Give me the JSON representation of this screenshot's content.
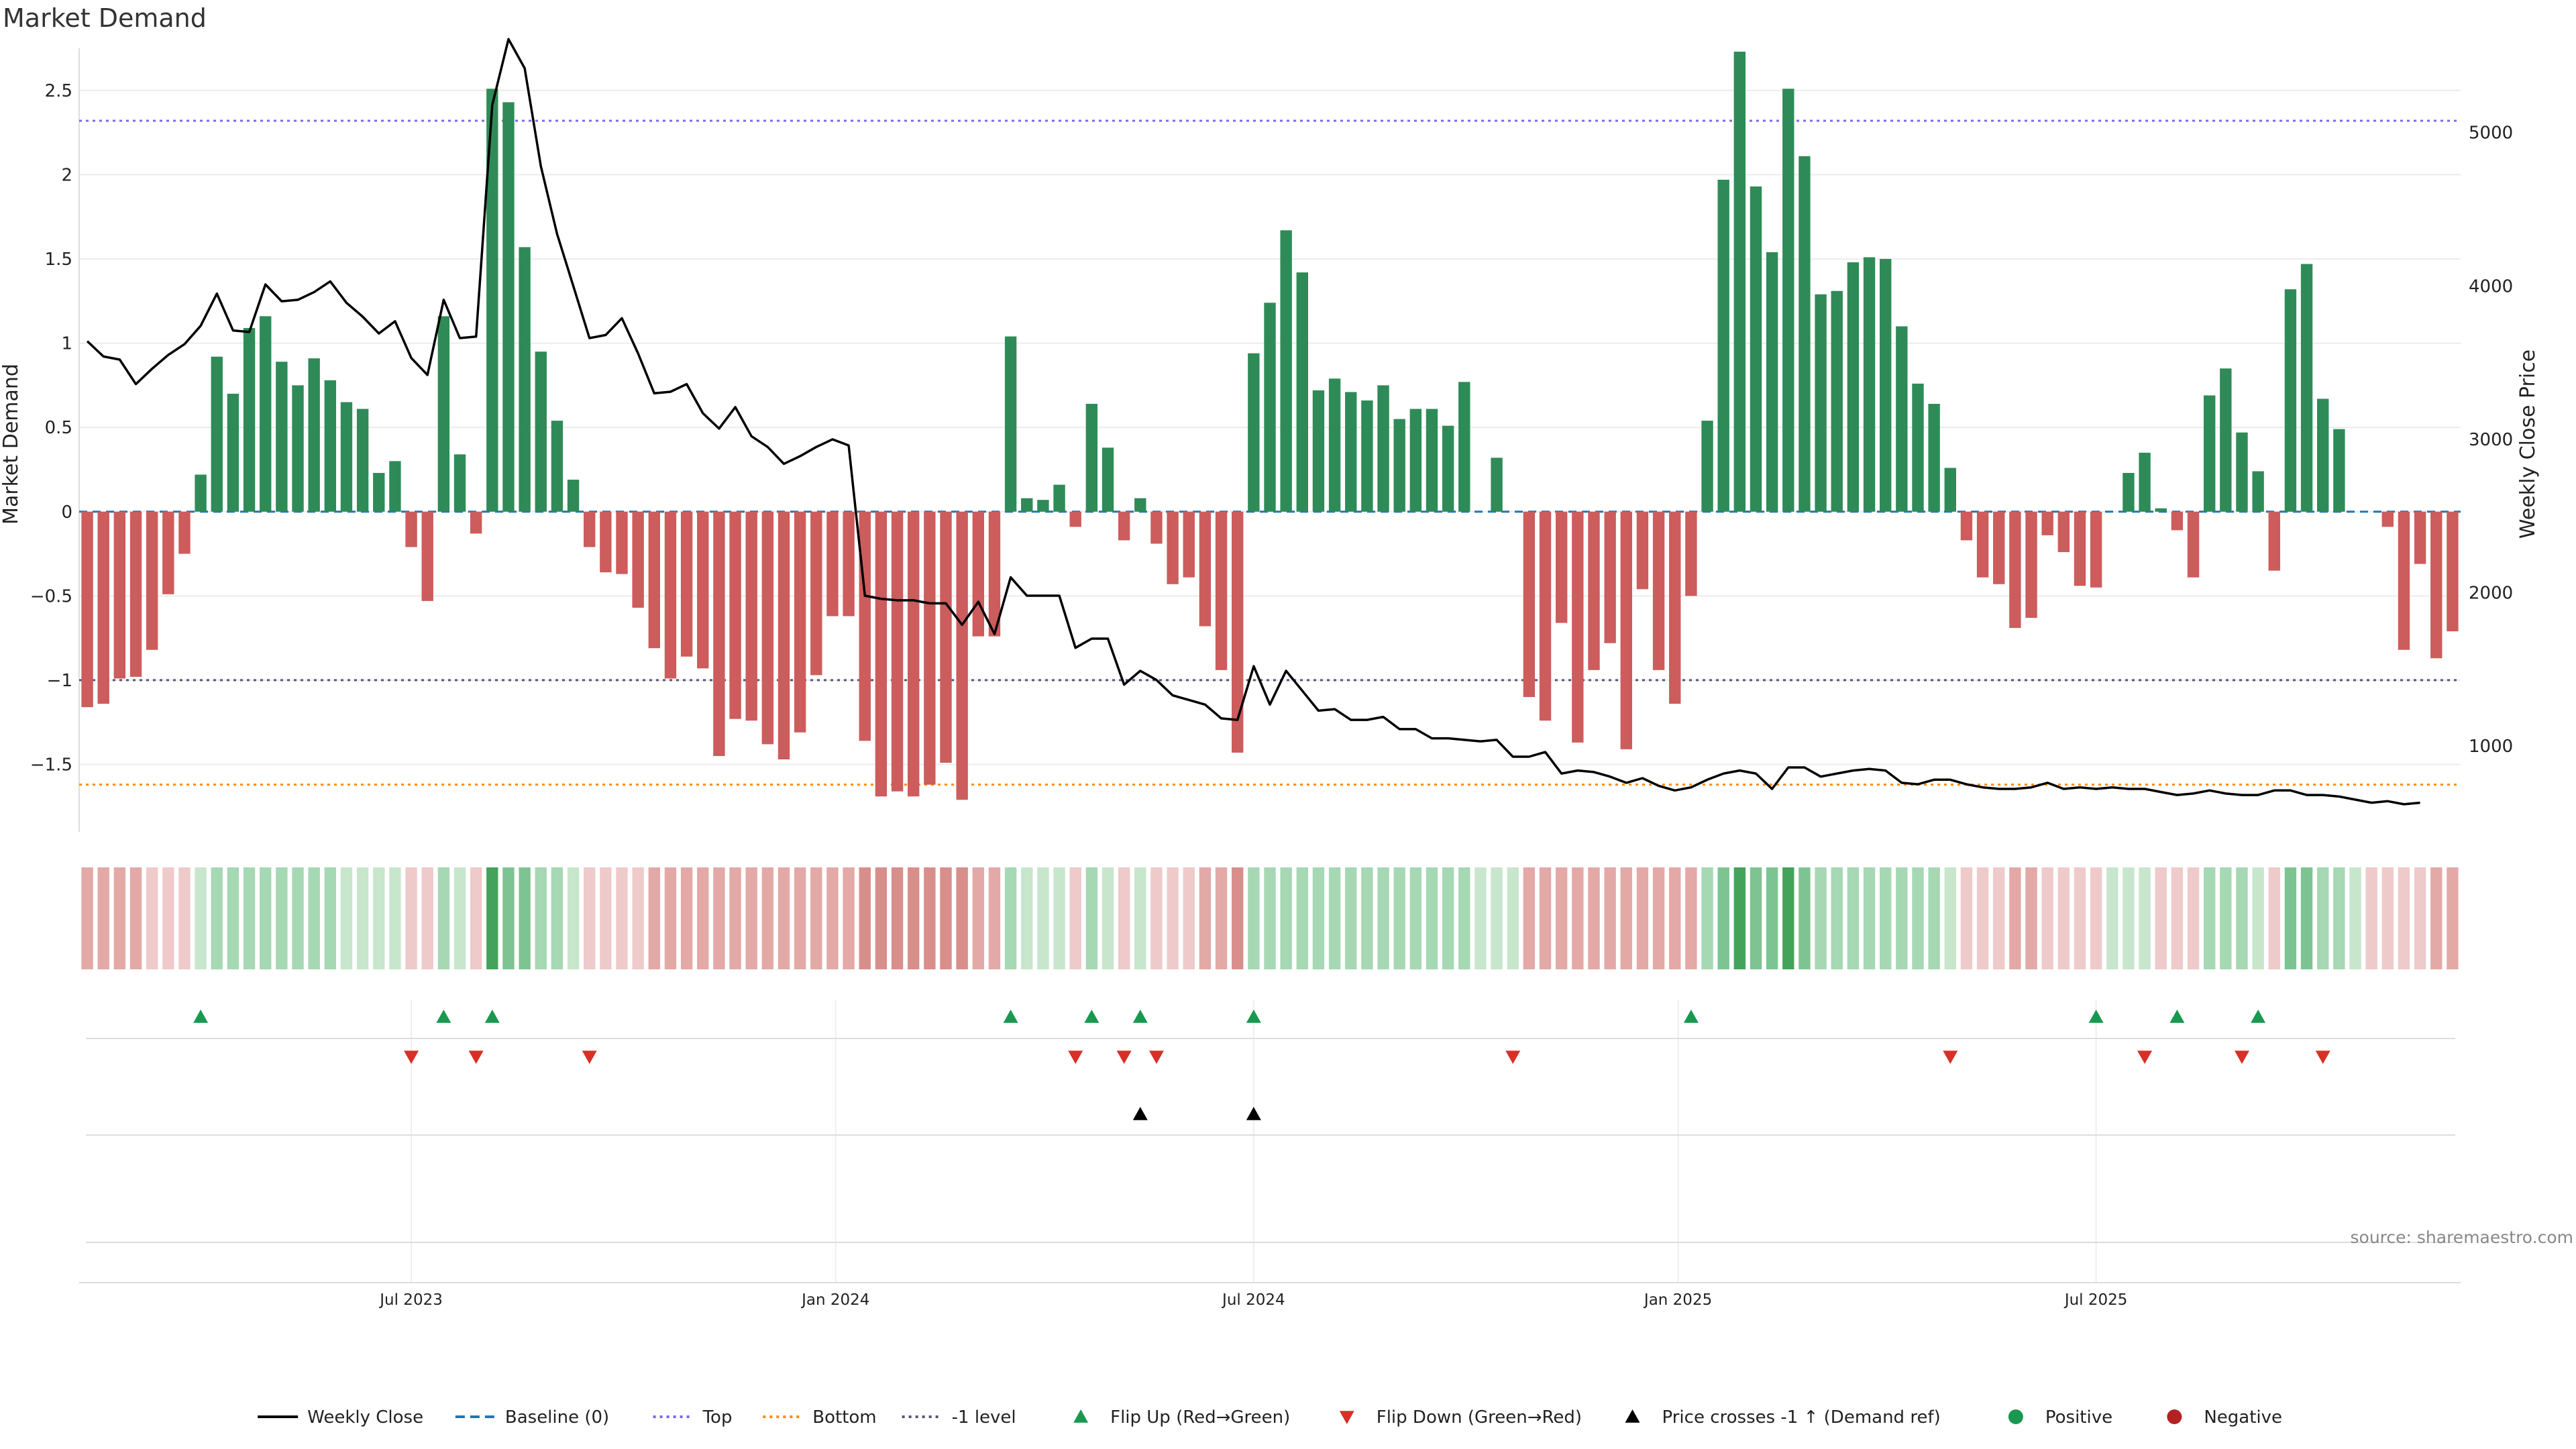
{
  "chart_data": {
    "type": "bar",
    "title": "Market Demand",
    "ylabel": "Market Demand",
    "y2label": "Weekly Close Price",
    "source": "source: sharemaestro.com",
    "ylim": [
      -1.9,
      2.75
    ],
    "y2lim": [
      440,
      5550
    ],
    "yticks": [
      -1.5,
      -1,
      -0.5,
      0,
      0.5,
      1,
      1.5,
      2,
      2.5
    ],
    "yticklabels": [
      "−1.5",
      "−1",
      "−0.5",
      "0",
      "0.5",
      "1",
      "1.5",
      "2",
      "2.5"
    ],
    "y2ticks": [
      1000,
      2000,
      3000,
      4000,
      5000
    ],
    "y2ticklabels": [
      "1000",
      "2000",
      "3000",
      "4000",
      "5000"
    ],
    "xticks": [
      {
        "index": 20,
        "label": "Jul 2023"
      },
      {
        "index": 46.2,
        "label": "Jan 2024"
      },
      {
        "index": 72,
        "label": "Jul 2024"
      },
      {
        "index": 98.2,
        "label": "Jan 2025"
      },
      {
        "index": 124,
        "label": "Jul 2025"
      }
    ],
    "reference_lines": {
      "baseline": 0,
      "top": 2.32,
      "bottom": -1.62,
      "minus_one": -1
    },
    "colors": {
      "positive": "#2e8b57",
      "negative": "#cd5c5c",
      "weekly_close": "#000000",
      "baseline": "#1f77b4",
      "top": "#7b68ee",
      "bottom": "#ff8c00",
      "minus_one": "#555577",
      "flip_up": "#1a9850",
      "flip_down": "#d73027",
      "price_cross": "#000000",
      "positive_dot": "#1a9850",
      "negative_dot": "#b22222"
    },
    "demand": [
      -1.16,
      -1.14,
      -0.99,
      -0.98,
      -0.82,
      -0.49,
      -0.25,
      0.22,
      0.92,
      0.7,
      1.09,
      1.16,
      0.89,
      0.75,
      0.91,
      0.78,
      0.65,
      0.61,
      0.23,
      0.3,
      -0.21,
      -0.53,
      1.16,
      0.34,
      -0.13,
      2.51,
      2.43,
      1.57,
      0.95,
      0.54,
      0.19,
      -0.21,
      -0.36,
      -0.37,
      -0.57,
      -0.81,
      -0.99,
      -0.86,
      -0.93,
      -1.45,
      -1.23,
      -1.24,
      -1.38,
      -1.47,
      -1.31,
      -0.97,
      -0.62,
      -0.62,
      -1.36,
      -1.69,
      -1.66,
      -1.69,
      -1.62,
      -1.49,
      -1.71,
      -0.74,
      -0.74,
      1.04,
      0.08,
      0.07,
      0.16,
      -0.09,
      0.64,
      0.38,
      -0.17,
      0.08,
      -0.19,
      -0.43,
      -0.39,
      -0.68,
      -0.94,
      -1.43,
      0.94,
      1.24,
      1.67,
      1.42,
      0.72,
      0.79,
      0.71,
      0.66,
      0.75,
      0.55,
      0.61,
      0.61,
      0.51,
      0.77,
      0.0,
      0.32,
      0.0,
      -1.1,
      -1.24,
      -0.66,
      -1.37,
      -0.94,
      -0.78,
      -1.41,
      -0.46,
      -0.94,
      -1.14,
      -0.5,
      0.54,
      1.97,
      2.73,
      1.93,
      1.54,
      2.51,
      2.11,
      1.29,
      1.31,
      1.48,
      1.51,
      1.5,
      1.1,
      0.76,
      0.64,
      0.26,
      -0.17,
      -0.39,
      -0.43,
      -0.69,
      -0.63,
      -0.14,
      -0.24,
      -0.44,
      -0.45,
      0.0,
      0.23,
      0.35,
      0.02,
      -0.11,
      -0.39,
      0.69,
      0.85,
      0.47,
      0.24,
      -0.35,
      1.32,
      1.47,
      0.67,
      0.49,
      0.0,
      0.0,
      -0.09,
      -0.82,
      -0.31,
      -0.87,
      -0.71
    ],
    "weekly_close": [
      3640,
      3540,
      3520,
      3360,
      3460,
      3550,
      3620,
      3740,
      3950,
      3710,
      3700,
      4010,
      3900,
      3910,
      3960,
      4030,
      3890,
      3800,
      3690,
      3770,
      3530,
      3420,
      3910,
      3660,
      3670,
      5180,
      5610,
      5420,
      4780,
      4340,
      4000,
      3660,
      3680,
      3790,
      3560,
      3300,
      3310,
      3360,
      3170,
      3070,
      3210,
      3020,
      2950,
      2840,
      2890,
      2950,
      3000,
      2960,
      1980,
      1960,
      1950,
      1950,
      1930,
      1930,
      1790,
      1940,
      1730,
      2100,
      1980,
      1980,
      1980,
      1640,
      1700,
      1700,
      1400,
      1490,
      1430,
      1330,
      1300,
      1270,
      1180,
      1170,
      1520,
      1270,
      1490,
      1360,
      1230,
      1240,
      1170,
      1170,
      1190,
      1110,
      1110,
      1050,
      1050,
      1040,
      1030,
      1040,
      930,
      930,
      960,
      820,
      840,
      830,
      800,
      760,
      790,
      740,
      710,
      730,
      780,
      820,
      840,
      820,
      720,
      860,
      860,
      800,
      820,
      840,
      850,
      840,
      760,
      750,
      780,
      780,
      750,
      730,
      720,
      720,
      730,
      760,
      720,
      730,
      720,
      730,
      720,
      720,
      700,
      680,
      690,
      710,
      690,
      680,
      680,
      710,
      710,
      680,
      680,
      670,
      650,
      630,
      640,
      620,
      630
    ],
    "heat": [
      -2,
      -2,
      -2,
      -2,
      -1,
      -1,
      -1,
      1,
      2,
      2,
      2,
      2,
      2,
      2,
      2,
      2,
      1,
      1,
      1,
      1,
      -1,
      -1,
      2,
      1,
      -1,
      4,
      3,
      3,
      2,
      2,
      1,
      -1,
      -1,
      -1,
      -1,
      -2,
      -2,
      -2,
      -2,
      -2,
      -2,
      -2,
      -2,
      -2,
      -2,
      -2,
      -2,
      -2,
      -3,
      -3,
      -3,
      -3,
      -3,
      -3,
      -3,
      -2,
      -2,
      2,
      1,
      1,
      1,
      -1,
      2,
      1,
      -1,
      1,
      -1,
      -1,
      -1,
      -2,
      -2,
      -3,
      2,
      2,
      2,
      2,
      2,
      2,
      2,
      2,
      2,
      2,
      2,
      2,
      2,
      2,
      1,
      1,
      1,
      -2,
      -2,
      -2,
      -2,
      -2,
      -2,
      -2,
      -2,
      -2,
      -2,
      -2,
      2,
      3,
      4,
      3,
      3,
      4,
      3,
      2,
      2,
      2,
      2,
      2,
      2,
      2,
      2,
      1,
      -1,
      -1,
      -1,
      -2,
      -2,
      -1,
      -1,
      -1,
      -1,
      1,
      1,
      1,
      -1,
      -1,
      -1,
      2,
      2,
      2,
      1,
      -1,
      3,
      3,
      2,
      2,
      1,
      -1,
      -1,
      -1,
      -1,
      -2,
      -2
    ],
    "flip_up": [
      7,
      22,
      25,
      57,
      62,
      65,
      72,
      99,
      124,
      129,
      134
    ],
    "flip_down": [
      20,
      24,
      31,
      61,
      64,
      66,
      88,
      115,
      127,
      133,
      138
    ],
    "price_cross": [
      65,
      72
    ],
    "legend": [
      {
        "label": "Weekly Close",
        "kind": "line",
        "color": "#000000"
      },
      {
        "label": "Baseline (0)",
        "kind": "dash",
        "color": "#1f77b4"
      },
      {
        "label": "Top",
        "kind": "dot",
        "color": "#7b68ee"
      },
      {
        "label": "Bottom",
        "kind": "dot",
        "color": "#ff8c00"
      },
      {
        "label": "-1 level",
        "kind": "dot",
        "color": "#555577"
      },
      {
        "label": "Flip Up (Red→Green)",
        "kind": "up",
        "color": "#1a9850"
      },
      {
        "label": "Flip Down (Green→Red)",
        "kind": "down",
        "color": "#d73027"
      },
      {
        "label": "Price crosses -1 ↑ (Demand ref)",
        "kind": "up",
        "color": "#000000"
      },
      {
        "label": "Positive",
        "kind": "circle",
        "color": "#1a9850"
      },
      {
        "label": "Negative",
        "kind": "circle",
        "color": "#b22222"
      }
    ]
  }
}
